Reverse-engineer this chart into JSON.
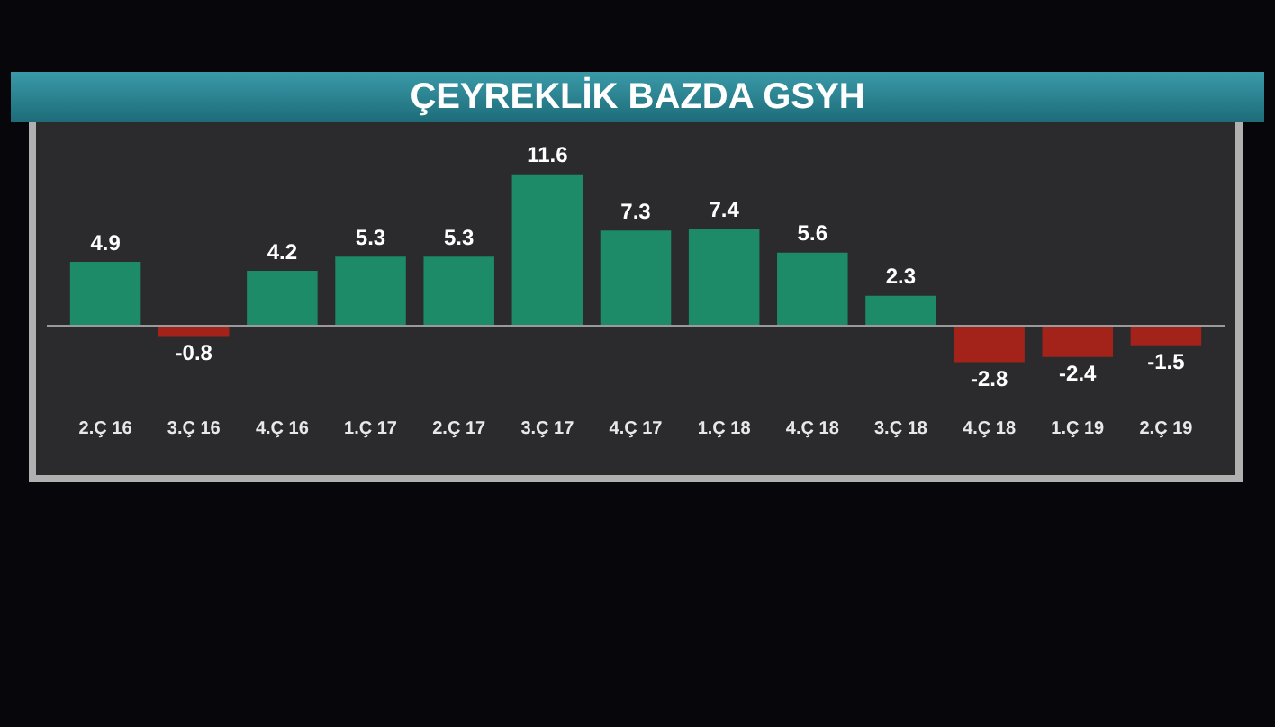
{
  "chart_data": {
    "type": "bar",
    "title": "ÇEYREKLİK BAZDA GSYH",
    "categories": [
      "2.Ç 16",
      "3.Ç 16",
      "4.Ç 16",
      "1.Ç 17",
      "2.Ç 17",
      "3.Ç 17",
      "4.Ç 17",
      "1.Ç 18",
      "4.Ç 18",
      "3.Ç 18",
      "4.Ç 18",
      "1.Ç 19",
      "2.Ç 19"
    ],
    "values": [
      4.9,
      -0.8,
      4.2,
      5.3,
      5.3,
      11.6,
      7.3,
      7.4,
      5.6,
      2.3,
      -2.8,
      -2.4,
      -1.5
    ],
    "colors": [
      "#1d8a68",
      "#a3231a",
      "#1d8a68",
      "#1d8a68",
      "#1d8a68",
      "#1d8a68",
      "#1d8a68",
      "#1d8a68",
      "#1d8a68",
      "#1d8a68",
      "#a3231a",
      "#a3231a",
      "#a3231a"
    ],
    "data_labels": true
  }
}
